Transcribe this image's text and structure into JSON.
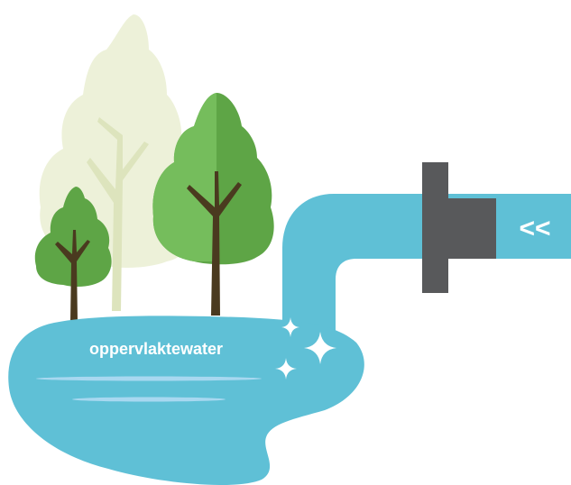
{
  "labels": {
    "water": "oppervlaktewater",
    "pipe_arrow": "<<"
  }
}
